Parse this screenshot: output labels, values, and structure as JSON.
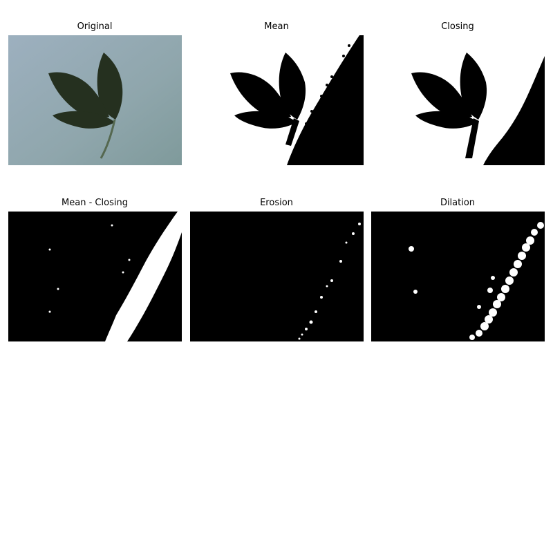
{
  "figure": {
    "panels": [
      {
        "title": "Original"
      },
      {
        "title": "Mean"
      },
      {
        "title": "Closing"
      },
      {
        "title": "Mean - Closing"
      },
      {
        "title": "Erosion"
      },
      {
        "title": "Dilation"
      }
    ]
  }
}
